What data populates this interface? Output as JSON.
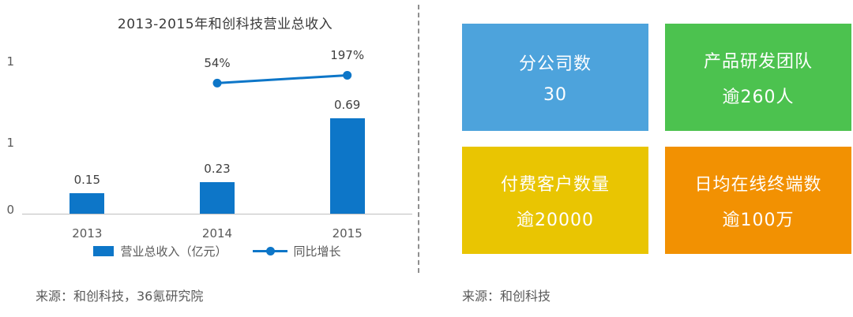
{
  "left": {
    "title": "2013-2015年和创科技营业总收入",
    "y_ticks": [
      "1",
      "1",
      "0"
    ],
    "legend": {
      "bar_label": "营业总收入（亿元）",
      "line_label": "同比增长"
    },
    "source": "来源：和创科技，36氪研究院"
  },
  "chart_data": {
    "type": "bar",
    "title": "2013-2015年和创科技营业总收入",
    "categories": [
      "2013",
      "2014",
      "2015"
    ],
    "series": [
      {
        "name": "营业总收入（亿元）",
        "type": "bar",
        "values": [
          0.15,
          0.23,
          0.69
        ],
        "labels": [
          "0.15",
          "0.23",
          "0.69"
        ],
        "color": "#0d76c8"
      },
      {
        "name": "同比增长",
        "type": "line",
        "values": [
          null,
          54,
          197
        ],
        "labels": [
          "",
          "54%",
          "197%"
        ],
        "unit": "%",
        "color": "#0d76c8"
      }
    ],
    "xlabel": "",
    "ylabel": "",
    "bar_axis_max": 1.2,
    "grid": false,
    "legend_position": "bottom"
  },
  "right": {
    "cards": [
      {
        "line1": "分公司数",
        "line2": "30",
        "color": "#4da3dc"
      },
      {
        "line1": "产品研发团队",
        "line2": "逾260人",
        "color": "#4cc24f"
      },
      {
        "line1": "付费客户数量",
        "line2": "逾20000",
        "color": "#e9c502"
      },
      {
        "line1": "日均在线终端数",
        "line2": "逾100万",
        "color": "#f29102"
      }
    ],
    "source": "来源：和创科技"
  }
}
